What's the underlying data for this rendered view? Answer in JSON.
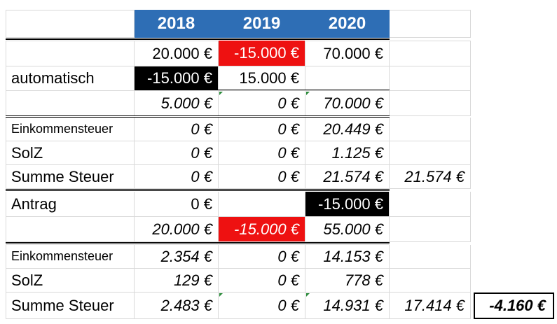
{
  "headers": {
    "y2018": "2018",
    "y2019": "2019",
    "y2020": "2020"
  },
  "row_base": {
    "y2018": "20.000 €",
    "y2019": "-15.000 €",
    "y2020": "70.000 €"
  },
  "automatisch": {
    "label": "automatisch",
    "transfer": {
      "y2018": "-15.000 €",
      "y2019": "15.000 €"
    },
    "income": {
      "y2018": "5.000 €",
      "y2019": "0 €",
      "y2020": "70.000 €"
    },
    "einkommensteuer": {
      "label": "Einkommensteuer",
      "y2018": "0 €",
      "y2019": "0 €",
      "y2020": "20.449 €"
    },
    "solz": {
      "label": "SolZ",
      "y2018": "0 €",
      "y2019": "0 €",
      "y2020": "1.125 €"
    },
    "summe": {
      "label": "Summe Steuer",
      "y2018": "0 €",
      "y2019": "0 €",
      "y2020": "21.574 €",
      "total": "21.574 €"
    }
  },
  "antrag": {
    "label": "Antrag",
    "transfer": {
      "y2018": "0 €",
      "y2020": "-15.000 €"
    },
    "income": {
      "y2018": "20.000 €",
      "y2019": "-15.000 €",
      "y2020": "55.000 €"
    },
    "einkommensteuer": {
      "label": "Einkommensteuer",
      "y2018": "2.354 €",
      "y2019": "0 €",
      "y2020": "14.153 €"
    },
    "solz": {
      "label": "SolZ",
      "y2018": "129 €",
      "y2019": "0 €",
      "y2020": "778 €"
    },
    "summe": {
      "label": "Summe Steuer",
      "y2018": "2.483 €",
      "y2019": "0 €",
      "y2020": "14.931 €",
      "total": "17.414 €"
    }
  },
  "difference": "-4.160 €",
  "colors": {
    "header_blue": "#2e6eb5",
    "negative_red": "#ee1111",
    "highlight_black": "#000000",
    "marker_green": "#2a8a3a"
  }
}
